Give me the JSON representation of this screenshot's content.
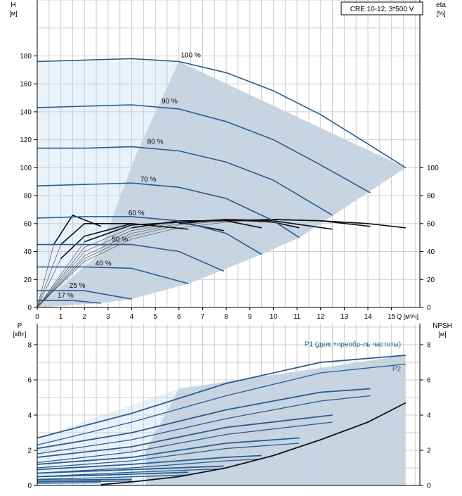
{
  "title_box": "CRE 10-12, 3*500 V",
  "chart_data": [
    {
      "type": "line",
      "title": "CRE 10-12, 3*500 V",
      "xlabel": "Q [м³/ч]",
      "ylabel_left": [
        "H",
        "[м]"
      ],
      "ylabel_right": [
        "eta",
        "[%]"
      ],
      "xlim": [
        0,
        16.2
      ],
      "ylim": [
        0,
        220
      ],
      "x_ticks": [
        0,
        1,
        2,
        3,
        4,
        5,
        6,
        7,
        8,
        9,
        10,
        11,
        12,
        13,
        14,
        15
      ],
      "y_ticks_left": [
        0,
        20,
        40,
        60,
        80,
        100,
        120,
        140,
        160,
        180
      ],
      "y_ticks_right": [
        0,
        20,
        40,
        60,
        80,
        100
      ],
      "grid": true,
      "head_curves": [
        {
          "name": "100 %",
          "x": [
            0,
            2,
            4,
            6,
            8,
            10,
            12,
            14,
            15.6
          ],
          "y": [
            176,
            177,
            178,
            176,
            168,
            155,
            138,
            117,
            100
          ]
        },
        {
          "name": "90 %",
          "x": [
            0,
            2,
            4,
            6,
            8,
            10,
            12,
            14.1
          ],
          "y": [
            143,
            144,
            145,
            142,
            133,
            120,
            102,
            82
          ]
        },
        {
          "name": "80 %",
          "x": [
            0,
            2,
            4,
            6,
            8,
            10,
            12.5
          ],
          "y": [
            114,
            114,
            115,
            112,
            104,
            91,
            66
          ]
        },
        {
          "name": "70 %",
          "x": [
            0,
            2,
            4,
            6,
            8,
            10,
            11.1
          ],
          "y": [
            87,
            88,
            89,
            86,
            78,
            62,
            50
          ]
        },
        {
          "name": "60 %",
          "x": [
            0,
            2,
            4,
            6,
            8,
            9.5
          ],
          "y": [
            64,
            65,
            65,
            62,
            53,
            38
          ]
        },
        {
          "name": "50 %",
          "x": [
            0,
            2,
            4,
            6,
            7.9
          ],
          "y": [
            45,
            45,
            45,
            40,
            26
          ]
        },
        {
          "name": "40 %",
          "x": [
            0,
            2,
            4,
            6.4
          ],
          "y": [
            29,
            29,
            28,
            17
          ]
        },
        {
          "name": "25 %",
          "x": [
            0,
            2,
            4
          ],
          "y": [
            12,
            12,
            6
          ]
        },
        {
          "name": "17 %",
          "x": [
            0,
            1.5,
            2.7
          ],
          "y": [
            5,
            5,
            3
          ]
        }
      ],
      "efficiency_curves": [
        {
          "name": "eta 100 %",
          "x": [
            0,
            2,
            4,
            6,
            8,
            10,
            12,
            14,
            15.6
          ],
          "y": [
            0,
            33,
            49,
            57,
            61,
            63,
            62,
            60,
            57
          ]
        },
        {
          "name": "eta 90 %",
          "x": [
            0,
            2,
            4,
            6,
            8,
            10,
            12,
            14.1
          ],
          "y": [
            0,
            35,
            51,
            59,
            62,
            63,
            62,
            58
          ]
        },
        {
          "name": "eta 80 %",
          "x": [
            0,
            2,
            4,
            6,
            8,
            10,
            12.5
          ],
          "y": [
            0,
            37,
            53,
            60,
            63,
            62,
            56
          ]
        },
        {
          "name": "eta 70 %",
          "x": [
            0,
            2,
            4,
            6,
            8,
            10,
            11.1
          ],
          "y": [
            0,
            40,
            55,
            61,
            63,
            61,
            57
          ]
        },
        {
          "name": "eta 60 %",
          "x": [
            0,
            2,
            4,
            6,
            8,
            9.5
          ],
          "y": [
            0,
            43,
            57,
            62,
            62,
            57
          ]
        },
        {
          "name": "eta 50 %",
          "x": [
            0,
            2,
            4,
            6,
            7.9
          ],
          "y": [
            0,
            47,
            59,
            61,
            55
          ]
        },
        {
          "name": "eta 40 %",
          "x": [
            0,
            1,
            2,
            4,
            6.4
          ],
          "y": [
            0,
            35,
            51,
            60,
            56
          ]
        },
        {
          "name": "eta 25 %",
          "x": [
            0,
            1,
            2,
            4
          ],
          "y": [
            0,
            45,
            60,
            60
          ]
        },
        {
          "name": "eta 17 %",
          "x": [
            0,
            0.7,
            1.5,
            2.7
          ],
          "y": [
            0,
            45,
            66,
            58
          ]
        }
      ],
      "operating_range": {
        "x": [
          0,
          6,
          15.6,
          11.1,
          9.5,
          6.4,
          4,
          2.7,
          0
        ],
        "y": [
          176,
          176,
          100,
          50,
          38,
          17,
          6,
          3,
          0
        ]
      }
    },
    {
      "type": "line",
      "xlabel": "",
      "ylabel_left": [
        "P",
        "[кВт]"
      ],
      "ylabel_right": [
        "NPSH",
        "[м]"
      ],
      "xlim": [
        0,
        16.2
      ],
      "ylim": [
        0,
        9.2
      ],
      "y_ticks_left": [
        0,
        2,
        4,
        6,
        8
      ],
      "y_ticks_right": [
        0,
        2,
        4,
        6,
        8
      ],
      "grid": true,
      "labels": {
        "p1": "P1 (двиг.+преобр-ль частоты)",
        "p2": "P2"
      },
      "p1_curves": [
        {
          "x": [
            0,
            4,
            8,
            12,
            15.6
          ],
          "y": [
            2.7,
            4.1,
            5.8,
            7.0,
            7.4
          ]
        },
        {
          "x": [
            0,
            4,
            8,
            12,
            14.1
          ],
          "y": [
            2.1,
            3.0,
            4.3,
            5.3,
            5.5
          ]
        },
        {
          "x": [
            0,
            4,
            8,
            12.5
          ],
          "y": [
            1.6,
            2.2,
            3.3,
            4.0
          ]
        },
        {
          "x": [
            0,
            4,
            8,
            11.1
          ],
          "y": [
            1.2,
            1.6,
            2.4,
            2.7
          ]
        },
        {
          "x": [
            0,
            4,
            8,
            9.5
          ],
          "y": [
            0.9,
            1.2,
            1.6,
            1.7
          ]
        },
        {
          "x": [
            0,
            4,
            7.9
          ],
          "y": [
            0.7,
            0.9,
            1.1
          ]
        },
        {
          "x": [
            0,
            3,
            6.4
          ],
          "y": [
            0.5,
            0.6,
            0.75
          ]
        },
        {
          "x": [
            0,
            2,
            4
          ],
          "y": [
            0.3,
            0.32,
            0.35
          ]
        },
        {
          "x": [
            0,
            1.5,
            2.7
          ],
          "y": [
            0.2,
            0.22,
            0.25
          ]
        }
      ],
      "p2_curves": [
        {
          "x": [
            0,
            4,
            8,
            12,
            15.6
          ],
          "y": [
            2.3,
            3.6,
            5.1,
            6.4,
            6.9
          ]
        },
        {
          "x": [
            0,
            4,
            8,
            12,
            14.1
          ],
          "y": [
            1.8,
            2.6,
            3.8,
            4.8,
            5.1
          ]
        },
        {
          "x": [
            0,
            4,
            8,
            12.5
          ],
          "y": [
            1.3,
            1.9,
            2.9,
            3.6
          ]
        },
        {
          "x": [
            0,
            4,
            8,
            11.1
          ],
          "y": [
            1.0,
            1.4,
            2.1,
            2.4
          ]
        },
        {
          "x": [
            0,
            4,
            8,
            9.5
          ],
          "y": [
            0.7,
            1.0,
            1.4,
            1.5
          ]
        },
        {
          "x": [
            0,
            4,
            7.9
          ],
          "y": [
            0.5,
            0.75,
            0.95
          ]
        },
        {
          "x": [
            0,
            3,
            6.4
          ],
          "y": [
            0.35,
            0.45,
            0.6
          ]
        },
        {
          "x": [
            0,
            2,
            4
          ],
          "y": [
            0.2,
            0.22,
            0.25
          ]
        },
        {
          "x": [
            0,
            1.5,
            2.7
          ],
          "y": [
            0.12,
            0.14,
            0.16
          ]
        }
      ],
      "npsh_curve": {
        "x": [
          2.7,
          4,
          6,
          8,
          10,
          12,
          14,
          15.6
        ],
        "y": [
          0.05,
          0.2,
          0.5,
          1.0,
          1.7,
          2.6,
          3.6,
          4.7
        ]
      },
      "operating_range": {
        "x": [
          0,
          6,
          15.6,
          15.6,
          0
        ],
        "y": [
          2.7,
          5.5,
          7.4,
          0,
          0
        ]
      }
    }
  ],
  "colors": {
    "grid": "#cfcfcf",
    "range_fill": "#c5d5e4",
    "range_light": "#e8f2fb",
    "curve_blue": "#2a5c8f",
    "curve_black": "#111111",
    "curve_gray": "#555555",
    "text": "#000000"
  }
}
